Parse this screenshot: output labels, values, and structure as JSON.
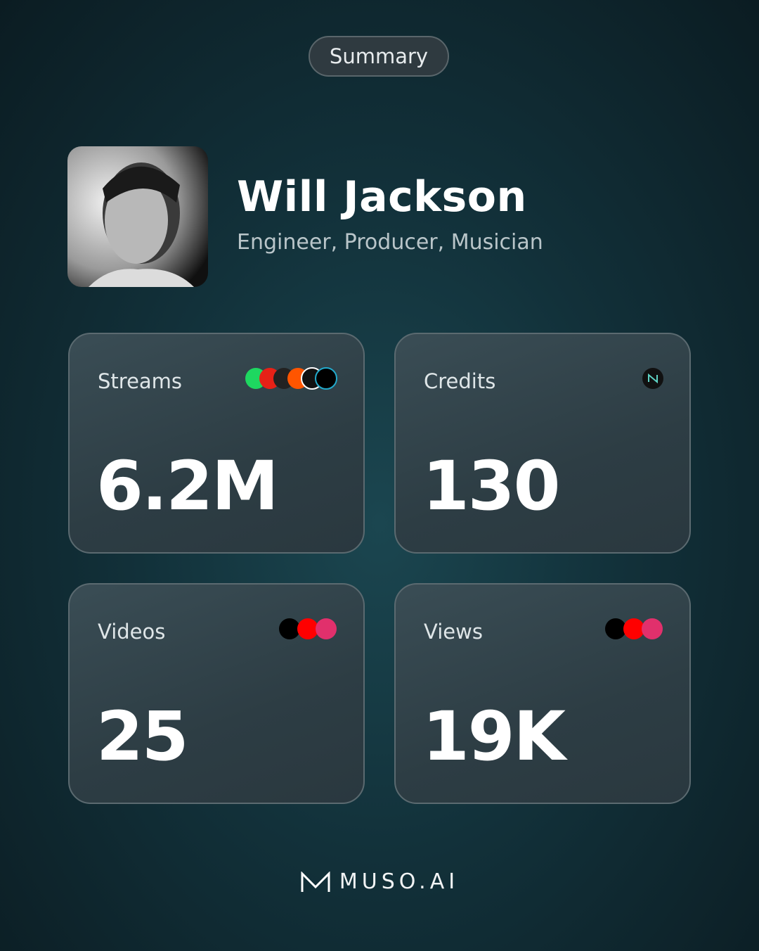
{
  "header": {
    "badge": "Summary"
  },
  "profile": {
    "name": "Will Jackson",
    "roles": "Engineer, Producer, Musician"
  },
  "cards": [
    {
      "label": "Streams",
      "value": "6.2M"
    },
    {
      "label": "Credits",
      "value": "130"
    },
    {
      "label": "Videos",
      "value": "25"
    },
    {
      "label": "Views",
      "value": "19K"
    }
  ],
  "footer": {
    "brand": "MUSO.AI"
  }
}
